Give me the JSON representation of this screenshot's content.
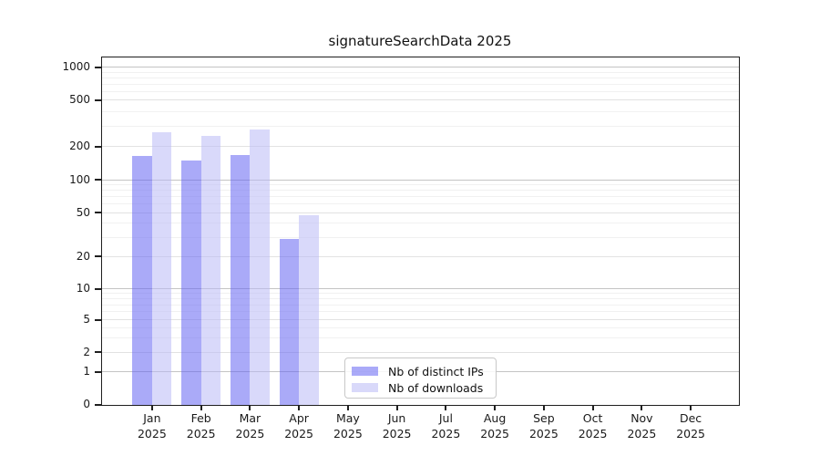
{
  "title": "signatureSearchData 2025",
  "chart_data": {
    "type": "bar",
    "categories": [
      "Jan 2025",
      "Feb 2025",
      "Mar 2025",
      "Apr 2025",
      "May 2025",
      "Jun 2025",
      "Jul 2025",
      "Aug 2025",
      "Sep 2025",
      "Oct 2025",
      "Nov 2025",
      "Dec 2025"
    ],
    "x_month_labels": [
      "Jan",
      "Feb",
      "Mar",
      "Apr",
      "May",
      "Jun",
      "Jul",
      "Aug",
      "Sep",
      "Oct",
      "Nov",
      "Dec"
    ],
    "x_year_label": "2025",
    "series": [
      {
        "name": "Nb of distinct IPs",
        "color": "#aaaaf8",
        "color_rgba": "rgba(100,100,243,0.55)",
        "values": [
          166,
          151,
          168,
          29,
          0,
          0,
          0,
          0,
          0,
          0,
          0,
          0
        ]
      },
      {
        "name": "Nb of downloads",
        "color": "#d8d8f8",
        "color_rgba": "rgba(185,185,245,0.55)",
        "values": [
          267,
          247,
          282,
          48,
          0,
          0,
          0,
          0,
          0,
          0,
          0,
          0
        ]
      }
    ],
    "title": "signatureSearchData 2025",
    "xlabel": "",
    "ylabel": "",
    "yscale": "symlog",
    "yticks": [
      0,
      1,
      2,
      5,
      10,
      20,
      50,
      100,
      200,
      500,
      1000
    ],
    "ylim": [
      0,
      1100
    ],
    "grid": true,
    "legend_position": "lower-center",
    "grid_colors": {
      "major": "#c4c4c4",
      "labeled_minor": "#e2e2e2",
      "minor": "#f1f1f1"
    }
  }
}
